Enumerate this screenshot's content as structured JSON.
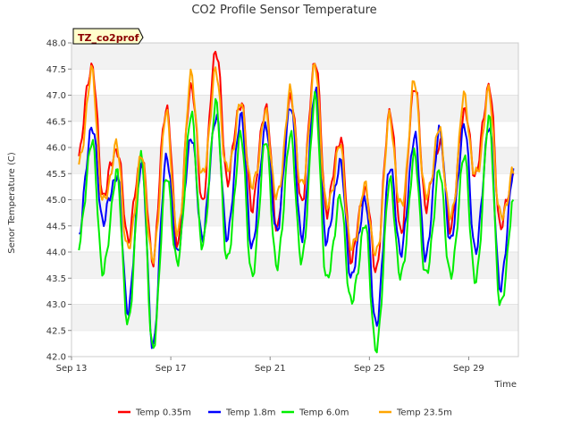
{
  "chart_data": {
    "type": "line",
    "title": "CO2 Profile Sensor Temperature",
    "xlabel": "Time",
    "ylabel": "Senor Temperature (C)",
    "station_tag": "TZ_co2prof",
    "x_unit": "date",
    "x_start": "2023-09-13",
    "xlim": [
      "2023-09-13",
      "2023-10-01"
    ],
    "ylim": [
      42.0,
      48.0
    ],
    "x_ticks": [
      "Sep 13",
      "Sep 17",
      "Sep 21",
      "Sep 25",
      "Sep 29"
    ],
    "y_ticks": [
      "42.0",
      "42.5",
      "43.0",
      "43.5",
      "44.0",
      "44.5",
      "45.0",
      "45.5",
      "46.0",
      "46.5",
      "47.0",
      "47.5",
      "48.0"
    ],
    "grid": "horizontal bands",
    "legend_position": "bottom",
    "x_days": [
      0.3,
      0.8,
      1.3,
      1.8,
      2.3,
      2.8,
      3.3,
      3.8,
      4.3,
      4.8,
      5.3,
      5.8,
      6.3,
      6.8,
      7.3,
      7.8,
      8.3,
      8.8,
      9.3,
      9.8,
      10.3,
      10.8,
      11.3,
      11.8,
      12.3,
      12.8,
      13.3,
      13.8,
      14.3,
      14.8,
      15.3,
      15.8,
      16.3,
      16.8,
      17.3,
      17.8
    ],
    "series": [
      {
        "name": "Temp 0.35m",
        "color": "#ff0000",
        "values": [
          45.9,
          47.6,
          45.1,
          46.0,
          44.3,
          45.8,
          43.9,
          46.8,
          44.2,
          47.2,
          45.0,
          47.9,
          45.4,
          46.9,
          44.9,
          46.8,
          44.5,
          47.0,
          45.0,
          47.7,
          44.8,
          46.2,
          43.9,
          45.2,
          43.7,
          46.7,
          44.4,
          47.2,
          44.9,
          46.1,
          44.5,
          46.7,
          45.5,
          47.2,
          44.5,
          45.5
        ]
      },
      {
        "name": "Temp 1.8m",
        "color": "#0000ff",
        "values": [
          44.3,
          46.4,
          44.6,
          45.5,
          42.9,
          45.7,
          42.2,
          45.8,
          44.0,
          46.2,
          44.3,
          46.6,
          44.3,
          46.6,
          44.1,
          46.4,
          44.4,
          46.8,
          44.3,
          47.1,
          44.2,
          45.7,
          43.5,
          45.0,
          42.6,
          45.6,
          44.0,
          46.2,
          43.9,
          46.3,
          44.2,
          46.4,
          44.0,
          46.4,
          43.3,
          45.6
        ]
      },
      {
        "name": "Temp 6.0m",
        "color": "#00ee00",
        "values": [
          44.1,
          46.1,
          43.6,
          45.5,
          42.6,
          45.8,
          42.1,
          45.4,
          43.8,
          46.6,
          44.1,
          46.8,
          43.8,
          46.2,
          43.5,
          46.1,
          43.7,
          46.2,
          43.8,
          46.9,
          43.4,
          45.0,
          43.0,
          44.5,
          42.1,
          45.3,
          43.5,
          45.8,
          43.5,
          45.5,
          43.5,
          45.8,
          43.4,
          46.5,
          42.9,
          45.0
        ]
      },
      {
        "name": "Temp 23.5m",
        "color": "#ffa500",
        "values": [
          45.6,
          47.4,
          44.9,
          46.0,
          44.0,
          45.8,
          43.8,
          46.6,
          44.3,
          47.3,
          45.4,
          47.4,
          45.5,
          46.8,
          45.2,
          46.6,
          45.0,
          47.0,
          45.2,
          47.5,
          44.8,
          46.0,
          44.0,
          45.2,
          43.9,
          46.5,
          44.8,
          47.2,
          45.0,
          46.3,
          44.6,
          46.9,
          45.4,
          47.0,
          44.6,
          45.5
        ]
      }
    ]
  }
}
